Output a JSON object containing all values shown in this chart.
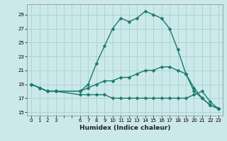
{
  "xlabel": "Humidex (Indice chaleur)",
  "ylabel": "",
  "bg_color": "#cce9e9",
  "grid_color": "#aad4d4",
  "line_color": "#1a7a6e",
  "xlim": [
    -0.5,
    23.5
  ],
  "ylim": [
    14.5,
    30.5
  ],
  "xticks_all": [
    0,
    1,
    2,
    3,
    4,
    5,
    6,
    7,
    8,
    9,
    10,
    11,
    12,
    13,
    14,
    15,
    16,
    17,
    18,
    19,
    20,
    21,
    22,
    23
  ],
  "xtick_labels": [
    "0",
    "1",
    "2",
    "3",
    "",
    "",
    "6",
    "7",
    "8",
    "9",
    "10",
    "11",
    "12",
    "13",
    "14",
    "15",
    "16",
    "17",
    "18",
    "19",
    "20",
    "21",
    "22",
    "23"
  ],
  "yticks": [
    15,
    17,
    19,
    21,
    23,
    25,
    27,
    29
  ],
  "line1_x": [
    0,
    1,
    2,
    3,
    6,
    7,
    8,
    9,
    10,
    11,
    12,
    13,
    14,
    15,
    16,
    17,
    18,
    19,
    20,
    21,
    22,
    23
  ],
  "line1_y": [
    19,
    18.5,
    18,
    18,
    18,
    19,
    22,
    24.5,
    27,
    28.5,
    28,
    28.5,
    29.5,
    29,
    28.5,
    27,
    24,
    20.5,
    18,
    17,
    16,
    15.5
  ],
  "line2_x": [
    0,
    1,
    2,
    3,
    6,
    7,
    8,
    9,
    10,
    11,
    12,
    13,
    14,
    15,
    16,
    17,
    18,
    19,
    20,
    21,
    22,
    23
  ],
  "line2_y": [
    19,
    18.5,
    18,
    18,
    18,
    18.5,
    19,
    19.5,
    19.5,
    20,
    20,
    20.5,
    21,
    21,
    21.5,
    21.5,
    21,
    20.5,
    18.5,
    17,
    16,
    15.5
  ],
  "line3_x": [
    0,
    1,
    2,
    3,
    6,
    7,
    8,
    9,
    10,
    11,
    12,
    13,
    14,
    15,
    16,
    17,
    18,
    19,
    20,
    21,
    22,
    23
  ],
  "line3_y": [
    19,
    18.5,
    18,
    18,
    17.5,
    17.5,
    17.5,
    17.5,
    17,
    17,
    17,
    17,
    17,
    17,
    17,
    17,
    17,
    17,
    17.5,
    18,
    16.5,
    15.5
  ],
  "marker_size": 2.5,
  "line_width": 1.0
}
